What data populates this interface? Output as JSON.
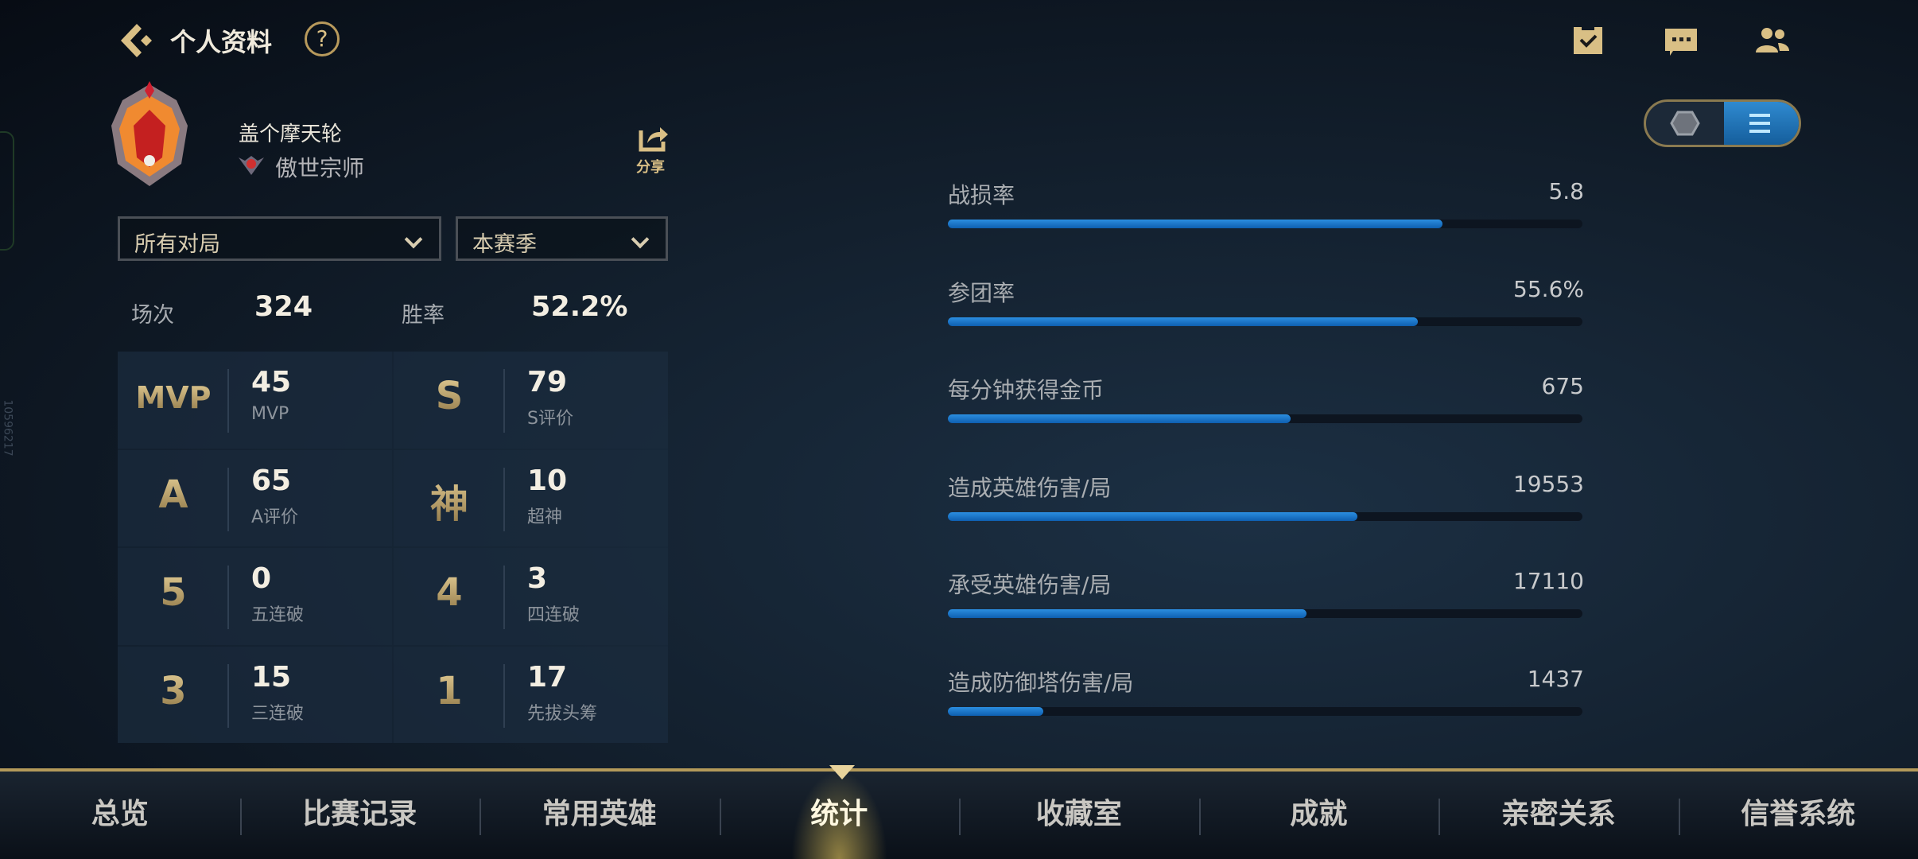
{
  "header": {
    "title": "个人资料",
    "help": "?",
    "icons": [
      "back-icon",
      "help-icon",
      "task-clipboard-icon",
      "chat-icon",
      "friends-icon"
    ]
  },
  "profile": {
    "name": "盖个摩天轮",
    "rank": "傲世宗师",
    "share": "分享"
  },
  "filters": {
    "mode": "所有对局",
    "season": "本赛季"
  },
  "summary": {
    "matches_label": "场次",
    "matches": "324",
    "winrate_label": "胜率",
    "winrate": "52.2%"
  },
  "grid": [
    {
      "icon": "MVP",
      "value": "45",
      "label": "MVP"
    },
    {
      "icon": "S",
      "value": "79",
      "label": "S评价"
    },
    {
      "icon": "A",
      "value": "65",
      "label": "A评价"
    },
    {
      "icon": "神",
      "value": "10",
      "label": "超神"
    },
    {
      "icon": "5",
      "value": "0",
      "label": "五连破"
    },
    {
      "icon": "4",
      "value": "3",
      "label": "四连破"
    },
    {
      "icon": "3",
      "value": "15",
      "label": "三连破"
    },
    {
      "icon": "1",
      "value": "17",
      "label": "先拔头筹"
    }
  ],
  "stats": [
    {
      "label": "战损率",
      "value": "5.8",
      "fill": 0.78
    },
    {
      "label": "参团率",
      "value": "55.6%",
      "fill": 0.74
    },
    {
      "label": "每分钟获得金币",
      "value": "675",
      "fill": 0.54
    },
    {
      "label": "造成英雄伤害/局",
      "value": "19553",
      "fill": 0.645
    },
    {
      "label": "承受英雄伤害/局",
      "value": "17110",
      "fill": 0.565
    },
    {
      "label": "造成防御塔伤害/局",
      "value": "1437",
      "fill": 0.15
    }
  ],
  "view_toggle": {
    "selected": "list",
    "options": [
      "hexagon-icon",
      "list-icon"
    ]
  },
  "nav": {
    "items": [
      "总览",
      "比赛记录",
      "常用英雄",
      "统计",
      "收藏室",
      "成就",
      "亲密关系",
      "信誉系统"
    ],
    "selected": 3
  },
  "watermark": "10596217",
  "colors": {
    "gold": "#d9bf85",
    "bar": "#1a7bd0",
    "toggle_active": "#2f8ad0"
  }
}
